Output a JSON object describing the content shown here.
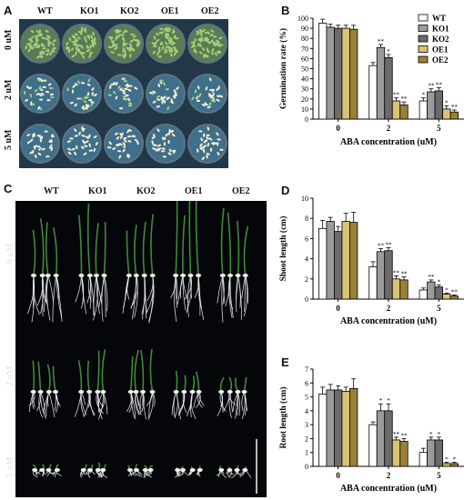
{
  "panels": {
    "A": {
      "letter": "A",
      "columns": [
        "WT",
        "KO1",
        "KO2",
        "OE1",
        "OE2"
      ],
      "rows": [
        "0 uM",
        "2 uM",
        "5 uM"
      ]
    },
    "C": {
      "letter": "C",
      "columns": [
        "WT",
        "KO1",
        "KO2",
        "OE1",
        "OE2"
      ],
      "rows": [
        "0 uM",
        "2 uM",
        "5 uM"
      ]
    }
  },
  "colors": {
    "WT": "#ffffff",
    "KO1": "#9b9b9b",
    "KO2": "#6b6b6b",
    "OE1": "#d9c276",
    "OE2": "#9b8035",
    "plate_bg": "#223748",
    "seedling": "#3e8a3a",
    "root": "#e8ecef"
  },
  "chart_data": [
    {
      "letter": "B",
      "type": "bar",
      "ylabel": "Germination rate (%)",
      "xlabel": "ABA concentration (uM)",
      "categories": [
        "0",
        "2",
        "5"
      ],
      "ylim": [
        0,
        100
      ],
      "yticks": [
        0,
        10,
        20,
        30,
        40,
        50,
        60,
        70,
        80,
        90,
        100
      ],
      "legend": "top-right",
      "series": [
        {
          "name": "WT",
          "values": [
            95,
            53,
            18
          ],
          "errors": [
            4,
            3,
            3
          ],
          "marks": [
            "",
            "",
            "*"
          ]
        },
        {
          "name": "KO1",
          "values": [
            91,
            71,
            27
          ],
          "errors": [
            3,
            3,
            3
          ],
          "marks": [
            "",
            "**",
            "**"
          ]
        },
        {
          "name": "KO2",
          "values": [
            90,
            61,
            28
          ],
          "errors": [
            3,
            3,
            3
          ],
          "marks": [
            "",
            "*",
            "**"
          ]
        },
        {
          "name": "OE1",
          "values": [
            90,
            18,
            10
          ],
          "errors": [
            3,
            3,
            3
          ],
          "marks": [
            "",
            "**",
            "*"
          ]
        },
        {
          "name": "OE2",
          "values": [
            89,
            14,
            7
          ],
          "errors": [
            4,
            3,
            2
          ],
          "marks": [
            "",
            "**",
            "**"
          ]
        }
      ]
    },
    {
      "letter": "D",
      "type": "bar",
      "ylabel": "Shoot length (cm)",
      "xlabel": "ABA concentration (uM)",
      "categories": [
        "0",
        "2",
        "5"
      ],
      "ylim": [
        0,
        10
      ],
      "yticks": [
        0,
        2,
        4,
        6,
        8,
        10
      ],
      "series": [
        {
          "name": "WT",
          "values": [
            7.0,
            3.2,
            0.9
          ],
          "errors": [
            0.8,
            0.5,
            0.2
          ],
          "marks": [
            "",
            "",
            ""
          ]
        },
        {
          "name": "KO1",
          "values": [
            7.7,
            4.7,
            1.7
          ],
          "errors": [
            0.4,
            0.3,
            0.2
          ],
          "marks": [
            "",
            "**",
            "**"
          ]
        },
        {
          "name": "KO2",
          "values": [
            6.7,
            4.8,
            1.2
          ],
          "errors": [
            0.5,
            0.3,
            0.2
          ],
          "marks": [
            "",
            "**",
            "*"
          ]
        },
        {
          "name": "OE1",
          "values": [
            7.7,
            2.0,
            0.5
          ],
          "errors": [
            0.8,
            0.3,
            0.1
          ],
          "marks": [
            "",
            "**",
            "*"
          ]
        },
        {
          "name": "OE2",
          "values": [
            7.6,
            1.9,
            0.3
          ],
          "errors": [
            1.0,
            0.3,
            0.1
          ],
          "marks": [
            "",
            "**",
            "**"
          ]
        }
      ]
    },
    {
      "letter": "E",
      "type": "bar",
      "ylabel": "Root length (cm)",
      "xlabel": "ABA concentration (uM)",
      "categories": [
        "0",
        "2",
        "5"
      ],
      "ylim": [
        0,
        7
      ],
      "yticks": [
        0,
        1,
        2,
        3,
        4,
        5,
        6,
        7
      ],
      "series": [
        {
          "name": "WT",
          "values": [
            5.2,
            3.0,
            1.0
          ],
          "errors": [
            0.5,
            0.2,
            0.3
          ],
          "marks": [
            "",
            "",
            ""
          ]
        },
        {
          "name": "KO1",
          "values": [
            5.5,
            4.0,
            1.9
          ],
          "errors": [
            0.4,
            0.5,
            0.2
          ],
          "marks": [
            "",
            "*",
            "*"
          ]
        },
        {
          "name": "KO2",
          "values": [
            5.5,
            4.0,
            1.9
          ],
          "errors": [
            0.3,
            0.5,
            0.2
          ],
          "marks": [
            "",
            "*",
            "*"
          ]
        },
        {
          "name": "OE1",
          "values": [
            5.4,
            1.9,
            0.2
          ],
          "errors": [
            0.3,
            0.2,
            0.1
          ],
          "marks": [
            "",
            "**",
            "*"
          ]
        },
        {
          "name": "OE2",
          "values": [
            5.6,
            1.8,
            0.2
          ],
          "errors": [
            0.7,
            0.2,
            0.1
          ],
          "marks": [
            "",
            "**",
            "*"
          ]
        }
      ]
    }
  ]
}
